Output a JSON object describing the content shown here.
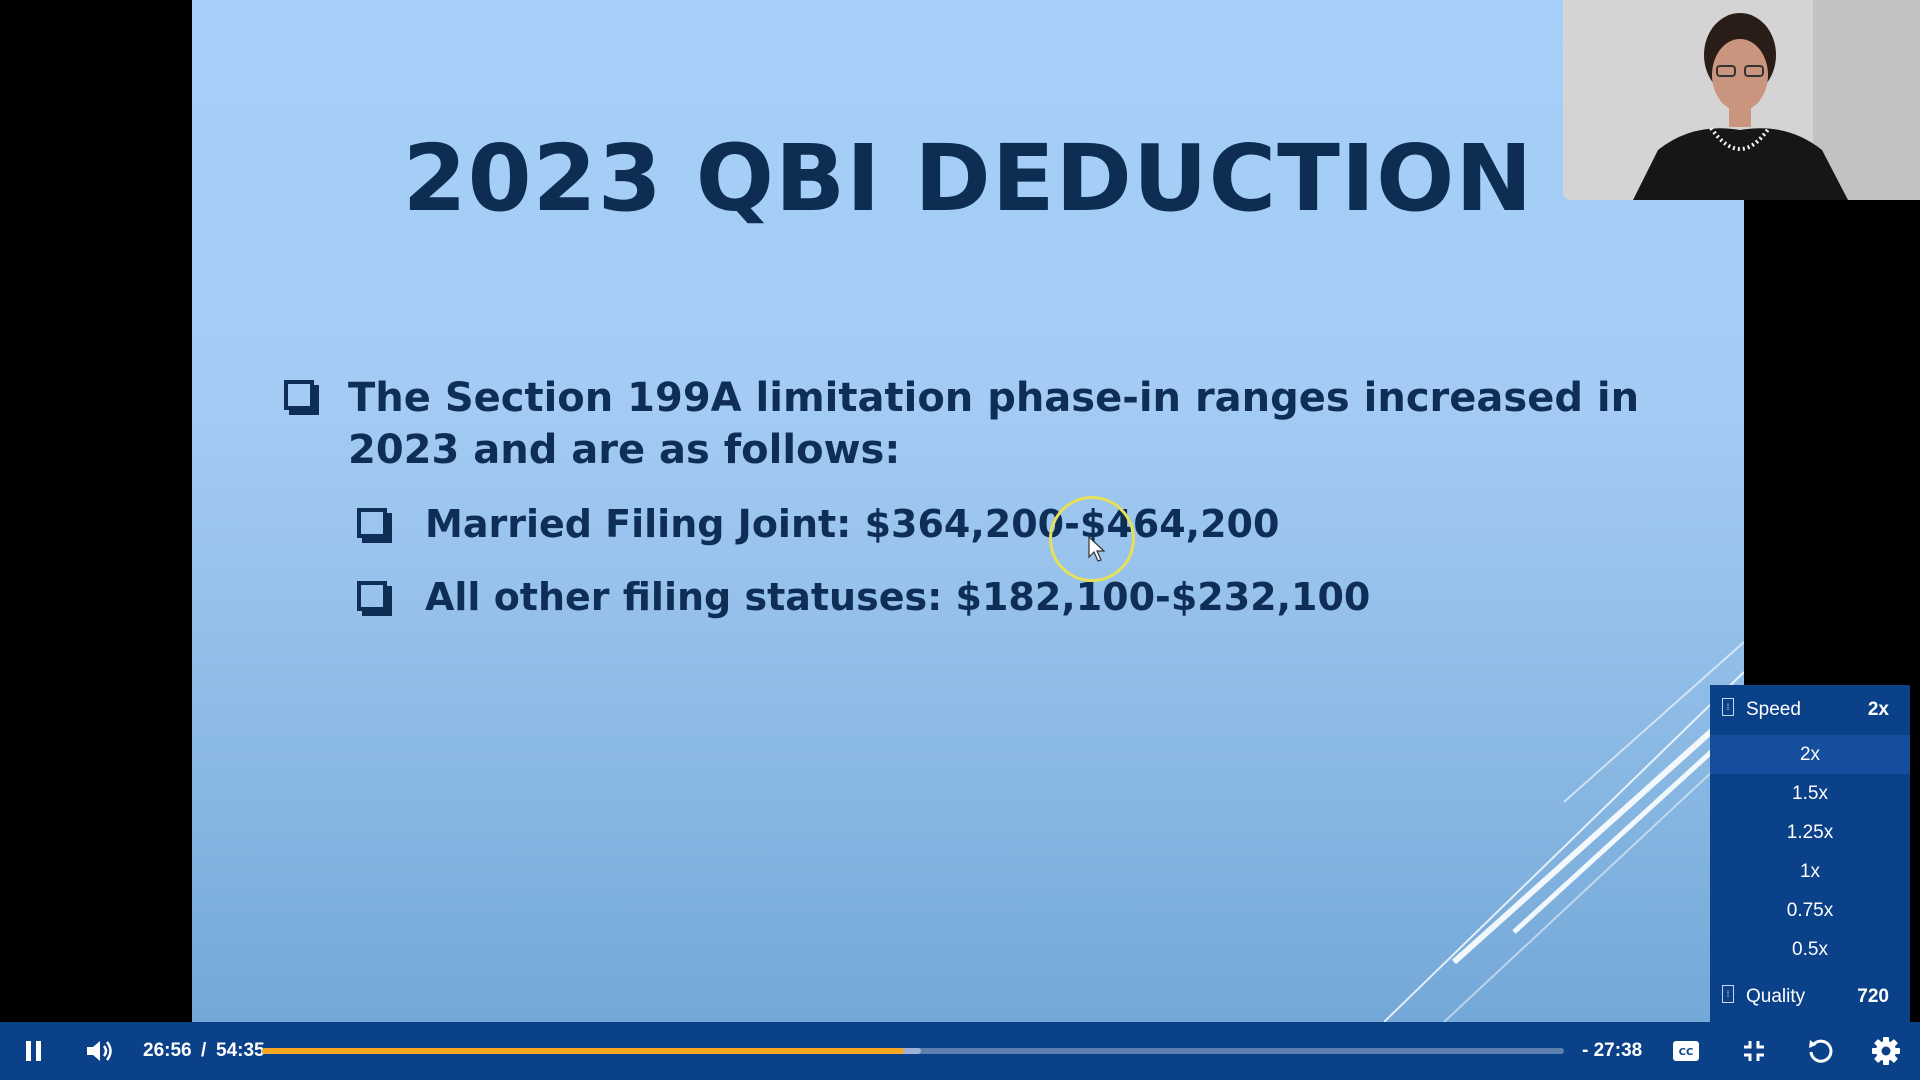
{
  "slide": {
    "title": "2023 QBI DEDUCTION",
    "main_bullet": "The Section 199A limitation phase-in ranges increased in 2023 and are as follows:",
    "sub_bullets": [
      "Married Filing Joint: $364,200-$464,200",
      "All other filing statuses: $182,100-$232,100"
    ]
  },
  "settings_menu": {
    "speed_label": "Speed",
    "speed_value": "2x",
    "speed_options": [
      "2x",
      "1.5x",
      "1.25x",
      "1x",
      "0.75x",
      "0.5x"
    ],
    "selected_speed": "2x",
    "quality_label": "Quality",
    "quality_value": "720"
  },
  "controls": {
    "current_time": "26:56",
    "separator": "/",
    "duration": "54:35",
    "remaining_time": "- 27:38",
    "progress_fraction": 0.493,
    "buffered_fraction": 0.506,
    "icons": {
      "play_pause": "pause-icon",
      "volume": "volume-icon",
      "captions": "captions-icon",
      "fullscreen": "exit-fullscreen-icon",
      "replay": "replay-icon",
      "settings": "gear-icon"
    }
  },
  "colors": {
    "control_bar": "#0b4189",
    "progress_played": "#f5a623",
    "slide_text": "#0f2e56"
  }
}
